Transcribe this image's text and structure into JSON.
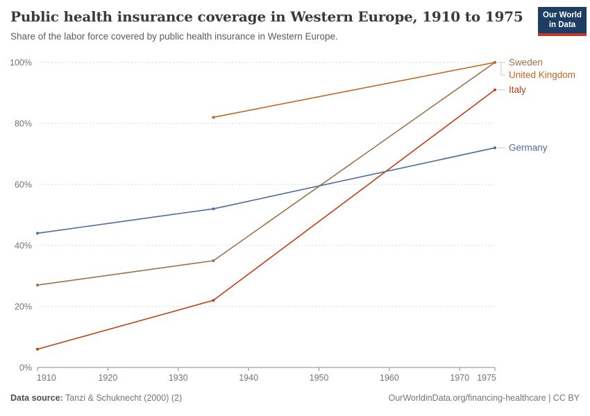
{
  "header": {
    "title": "Public health insurance coverage in Western Europe, 1910 to 1975",
    "subtitle": "Share of the labor force covered by public health insurance in Western Europe.",
    "logo": {
      "line1": "Our World",
      "line2": "in Data",
      "bg_color": "#1d3d63",
      "bar_color": "#c0392b"
    }
  },
  "footer": {
    "source_label": "Data source:",
    "source_text": " Tanzi & Schuknecht (2000) (2)",
    "link_text": "OurWorldinData.org/financing-healthcare | CC BY"
  },
  "chart_data": {
    "type": "line",
    "title": "Public health insurance coverage in Western Europe, 1910 to 1975",
    "xlabel": "",
    "ylabel": "",
    "xlim": [
      1910,
      1975
    ],
    "ylim": [
      0,
      100
    ],
    "xticks": [
      1910,
      1920,
      1930,
      1940,
      1950,
      1960,
      1970,
      1975
    ],
    "yticks": [
      0,
      20,
      40,
      60,
      80,
      100
    ],
    "ytick_suffix": "%",
    "grid": true,
    "legend_position": "right-end-labels",
    "axis_color": "#8a8a8a",
    "grid_color": "#dadada",
    "tick_label_color": "#737373",
    "connector_color": "#c8c8c8",
    "series": [
      {
        "name": "Sweden",
        "color": "#9a7146",
        "points": [
          [
            1910,
            27
          ],
          [
            1935,
            35
          ],
          [
            1975,
            100
          ]
        ]
      },
      {
        "name": "United Kingdom",
        "color": "#bf6721",
        "points": [
          [
            1935,
            82
          ],
          [
            1975,
            100
          ]
        ]
      },
      {
        "name": "Italy",
        "color": "#c23a14",
        "points": [
          [
            1910,
            6
          ],
          [
            1935,
            22
          ],
          [
            1975,
            91
          ]
        ]
      },
      {
        "name": "Germany",
        "color": "#4c6a9c",
        "points": [
          [
            1910,
            44
          ],
          [
            1935,
            52
          ],
          [
            1975,
            72
          ]
        ]
      }
    ]
  }
}
